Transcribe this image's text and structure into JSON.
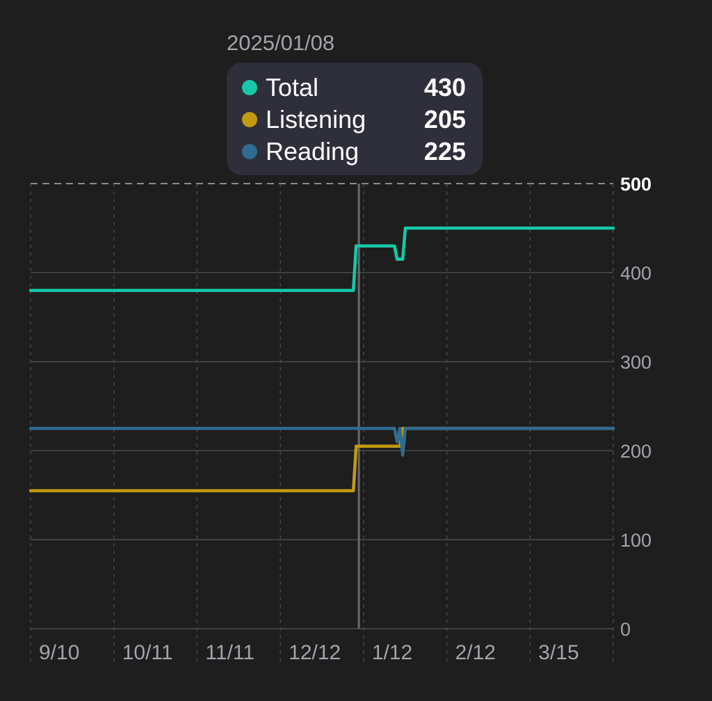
{
  "tooltip": {
    "date": "2025/01/08",
    "rows": [
      {
        "name": "Total",
        "value": "430",
        "color": "#15c9a8"
      },
      {
        "name": "Listening",
        "value": "205",
        "color": "#c39a12"
      },
      {
        "name": "Reading",
        "value": "225",
        "color": "#2f6b8f"
      }
    ]
  },
  "chart_data": {
    "type": "line",
    "x_ticks": [
      "9/10",
      "10/11",
      "11/11",
      "12/12",
      "1/12",
      "2/12",
      "3/15"
    ],
    "y_ticks": [
      0,
      100,
      200,
      300,
      400,
      500
    ],
    "ylim": [
      0,
      500
    ],
    "xlim": [
      "2024-09-10",
      "2025-04-11"
    ],
    "grid": true,
    "selected_x": "2025-01-08",
    "series": [
      {
        "name": "Total",
        "color": "#15c9a8",
        "points": [
          [
            "2024-09-10",
            380
          ],
          [
            "2025-01-06",
            380
          ],
          [
            "2025-01-07",
            430
          ],
          [
            "2025-01-21",
            430
          ],
          [
            "2025-01-22",
            415
          ],
          [
            "2025-01-24",
            415
          ],
          [
            "2025-01-25",
            450
          ],
          [
            "2025-04-11",
            450
          ]
        ]
      },
      {
        "name": "Listening",
        "color": "#c39a12",
        "points": [
          [
            "2024-09-10",
            155
          ],
          [
            "2025-01-06",
            155
          ],
          [
            "2025-01-07",
            205
          ],
          [
            "2025-01-23",
            205
          ],
          [
            "2025-01-24",
            225
          ],
          [
            "2025-04-11",
            225
          ]
        ]
      },
      {
        "name": "Reading",
        "color": "#2f6b8f",
        "points": [
          [
            "2024-09-10",
            225
          ],
          [
            "2025-01-21",
            225
          ],
          [
            "2025-01-22",
            210
          ],
          [
            "2025-01-23",
            225
          ],
          [
            "2025-01-24",
            195
          ],
          [
            "2025-01-25",
            225
          ],
          [
            "2025-04-11",
            225
          ]
        ]
      }
    ]
  }
}
